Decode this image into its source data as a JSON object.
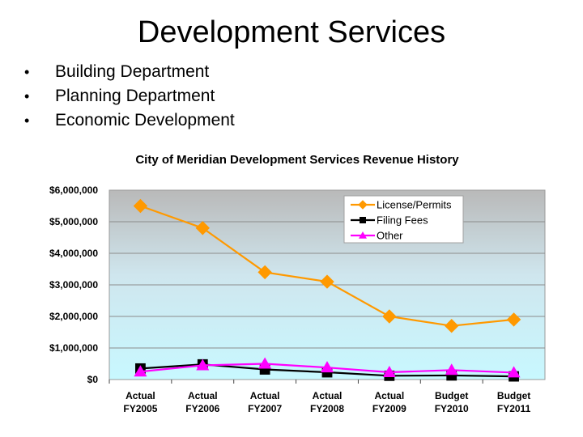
{
  "slide": {
    "title": "Development Services",
    "bullets": [
      "Building Department",
      "Planning Department",
      "Economic Development"
    ]
  },
  "chart_data": {
    "type": "line",
    "title": "City of Meridian Development Services Revenue History",
    "categories": [
      [
        "Actual",
        "FY2005"
      ],
      [
        "Actual",
        "FY2006"
      ],
      [
        "Actual",
        "FY2007"
      ],
      [
        "Actual",
        "FY2008"
      ],
      [
        "Actual",
        "FY2009"
      ],
      [
        "Budget",
        "FY2010"
      ],
      [
        "Budget",
        "FY2011"
      ]
    ],
    "ylim": [
      0,
      6000000
    ],
    "yticks": [
      0,
      1000000,
      2000000,
      3000000,
      4000000,
      5000000,
      6000000
    ],
    "ytick_labels": [
      "$0",
      "$1,000,000",
      "$2,000,000",
      "$3,000,000",
      "$4,000,000",
      "$5,000,000",
      "$6,000,000"
    ],
    "legend_position": "top-right",
    "series": [
      {
        "name": "License/Permits",
        "color": "#ff9900",
        "marker": "diamond",
        "values": [
          5500000,
          4800000,
          3400000,
          3100000,
          2000000,
          1700000,
          1900000
        ]
      },
      {
        "name": "Filing Fees",
        "color": "#000000",
        "marker": "square",
        "values": [
          350000,
          480000,
          320000,
          230000,
          120000,
          130000,
          100000
        ]
      },
      {
        "name": "Other",
        "color": "#ff00ff",
        "marker": "triangle",
        "values": [
          250000,
          450000,
          500000,
          380000,
          230000,
          300000,
          220000
        ]
      }
    ]
  }
}
